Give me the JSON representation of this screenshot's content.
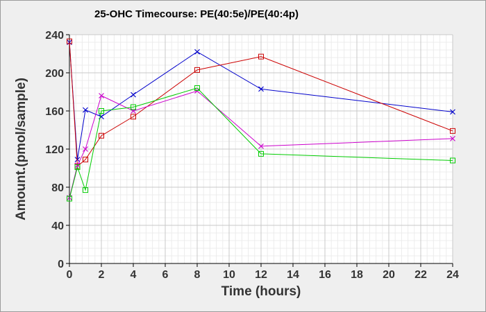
{
  "chart_data": {
    "type": "line",
    "title": "25-OHC Timecourse: PE(40:5e)/PE(40:4p)",
    "xlabel": "Time (hours)",
    "ylabel": "Amount.(pmol/sample)",
    "xlim": [
      0,
      24
    ],
    "ylim": [
      0,
      240
    ],
    "xticks": [
      0,
      2,
      4,
      6,
      8,
      10,
      12,
      14,
      16,
      18,
      20,
      22,
      24
    ],
    "yticks": [
      0,
      40,
      80,
      120,
      160,
      200,
      240
    ],
    "grid": true,
    "legend": "none",
    "series": [
      {
        "color": "#0000cc",
        "marker": "x",
        "points": [
          [
            0,
            232
          ],
          [
            0.5,
            109
          ],
          [
            1,
            161
          ],
          [
            2,
            154
          ],
          [
            4,
            177
          ],
          [
            8,
            222
          ],
          [
            12,
            183
          ],
          [
            24,
            159
          ]
        ]
      },
      {
        "color": "#cc0000",
        "marker": "square",
        "points": [
          [
            0,
            233
          ],
          [
            0.5,
            102
          ],
          [
            1,
            109
          ],
          [
            2,
            134
          ],
          [
            4,
            154
          ],
          [
            8,
            203
          ],
          [
            12,
            217
          ],
          [
            24,
            139
          ]
        ]
      },
      {
        "color": "#cc00cc",
        "marker": "x",
        "points": [
          [
            0,
            69
          ],
          [
            0.5,
            103
          ],
          [
            1,
            120
          ],
          [
            2,
            176
          ],
          [
            4,
            160
          ],
          [
            8,
            181
          ],
          [
            12,
            123
          ],
          [
            24,
            131
          ]
        ]
      },
      {
        "color": "#00cc00",
        "marker": "square",
        "points": [
          [
            0,
            68
          ],
          [
            0.5,
            101
          ],
          [
            1,
            77
          ],
          [
            2,
            160
          ],
          [
            4,
            164
          ],
          [
            8,
            184
          ],
          [
            12,
            115
          ],
          [
            24,
            108
          ]
        ]
      }
    ]
  }
}
